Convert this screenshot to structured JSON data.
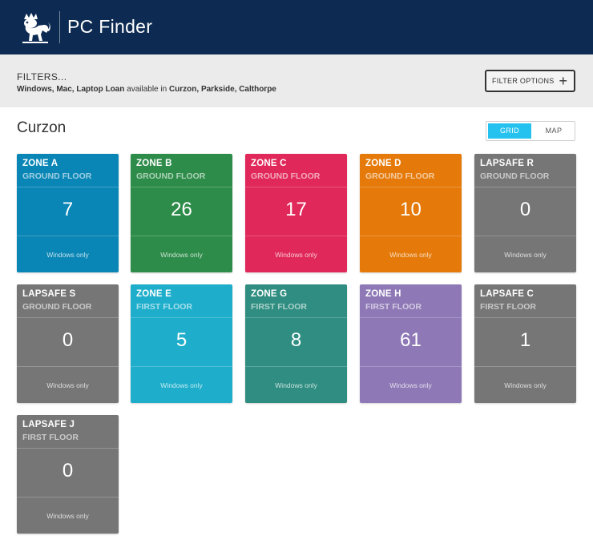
{
  "header": {
    "title": "PC Finder",
    "logo": "lion-crest-icon"
  },
  "filters": {
    "heading": "FILTERS...",
    "devices": "Windows, Mac, Laptop Loan",
    "connector": " available in ",
    "locations": "Curzon, Parkside, Calthorpe",
    "button_label": "FILTER OPTIONS",
    "button_icon": "plus-icon"
  },
  "location": {
    "title": "Curzon"
  },
  "view_toggle": {
    "grid_label": "GRID",
    "map_label": "MAP",
    "active": "GRID"
  },
  "zones": [
    {
      "name": "ZONE A",
      "floor": "GROUND FLOOR",
      "count": "7",
      "note": "Windows only",
      "color": "#0a86b6"
    },
    {
      "name": "ZONE B",
      "floor": "GROUND FLOOR",
      "count": "26",
      "note": "Windows only",
      "color": "#2e8c4a"
    },
    {
      "name": "ZONE C",
      "floor": "GROUND FLOOR",
      "count": "17",
      "note": "Windows only",
      "color": "#e1285a"
    },
    {
      "name": "ZONE D",
      "floor": "GROUND FLOOR",
      "count": "10",
      "note": "Windows only",
      "color": "#e57a0a"
    },
    {
      "name": "LAPSAFE R",
      "floor": "GROUND FLOOR",
      "count": "0",
      "note": "Windows only",
      "color": "#767676"
    },
    {
      "name": "LAPSAFE S",
      "floor": "GROUND FLOOR",
      "count": "0",
      "note": "Windows only",
      "color": "#767676"
    },
    {
      "name": "ZONE E",
      "floor": "FIRST FLOOR",
      "count": "5",
      "note": "Windows only",
      "color": "#1eaecb"
    },
    {
      "name": "ZONE G",
      "floor": "FIRST FLOOR",
      "count": "8",
      "note": "Windows only",
      "color": "#2f8e81"
    },
    {
      "name": "ZONE H",
      "floor": "FIRST FLOOR",
      "count": "61",
      "note": "Windows only",
      "color": "#8e79b6"
    },
    {
      "name": "LAPSAFE C",
      "floor": "FIRST FLOOR",
      "count": "1",
      "note": "Windows only",
      "color": "#767676"
    },
    {
      "name": "LAPSAFE J",
      "floor": "FIRST FLOOR",
      "count": "0",
      "note": "Windows only",
      "color": "#767676"
    }
  ]
}
